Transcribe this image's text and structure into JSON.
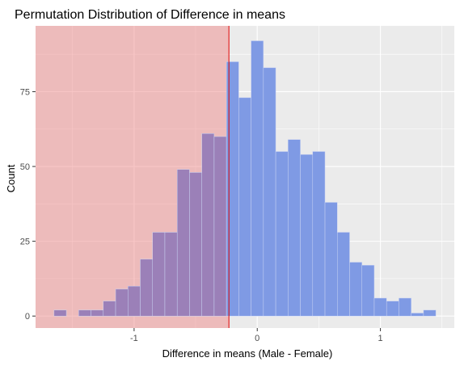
{
  "chart_data": {
    "type": "bar",
    "title": "Permutation Distribution of Difference in means",
    "xlabel": "Difference in means (Male - Female)",
    "ylabel": "Count",
    "bin_width": 0.1,
    "xlim": [
      -1.8,
      1.6
    ],
    "ylim": [
      -4,
      97
    ],
    "x_ticks": [
      -1,
      0,
      1
    ],
    "x_tick_labels": [
      "-1",
      "0",
      "1"
    ],
    "y_ticks": [
      0,
      25,
      50,
      75
    ],
    "y_tick_labels": [
      "0",
      "25",
      "50",
      "75"
    ],
    "observed_value": -0.23,
    "grid": true,
    "series": [
      {
        "bin_centers": [
          -1.6,
          -1.5,
          -1.4,
          -1.3,
          -1.2,
          -1.1,
          -1.0,
          -0.9,
          -0.8,
          -0.7,
          -0.6,
          -0.5,
          -0.4,
          -0.3,
          -0.2,
          -0.1,
          0.0,
          0.1,
          0.2,
          0.3,
          0.4,
          0.5,
          0.6,
          0.7,
          0.8,
          0.9,
          1.0,
          1.1,
          1.2,
          1.3,
          1.4
        ],
        "values": [
          2,
          0,
          2,
          2,
          5,
          9,
          10,
          19,
          28,
          28,
          49,
          48,
          61,
          60,
          85,
          73,
          92,
          83,
          55,
          59,
          54,
          55,
          38,
          28,
          18,
          17,
          6,
          5,
          6,
          1,
          2
        ]
      }
    ],
    "colors": {
      "panel_background": "#ebebeb",
      "grid": "#ffffff",
      "shaded_region": "#f08080",
      "bar_fill": "#7f9ae4",
      "bar_fill_in_shaded_region": "#9b80b8",
      "observed_line": "#e00000"
    }
  }
}
